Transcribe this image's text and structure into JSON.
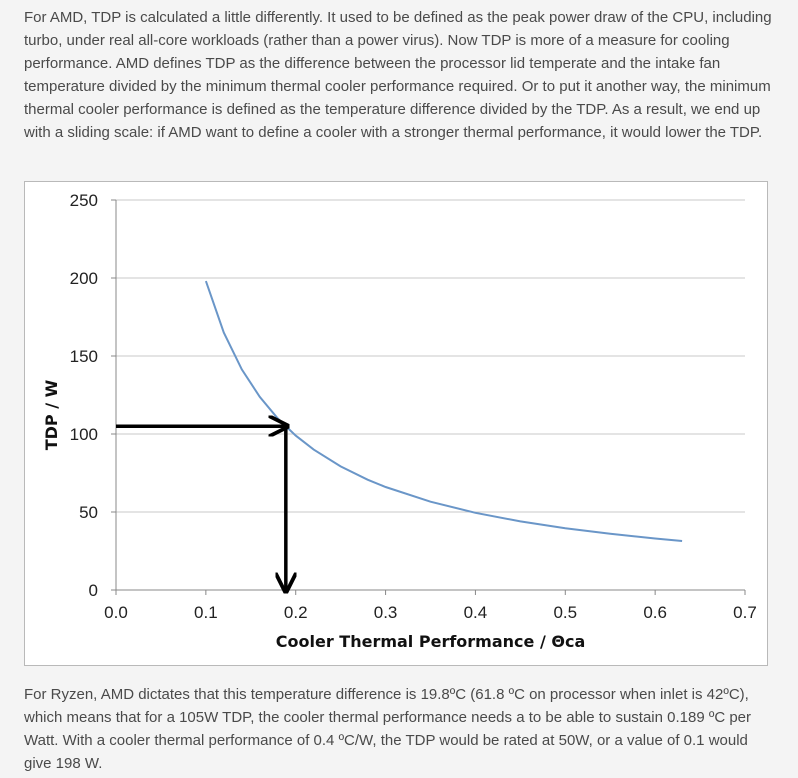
{
  "article": {
    "paragraph1": "For AMD, TDP is calculated a little differently. It used to be defined as the peak power draw of the CPU, including turbo, under real all-core workloads (rather than a power virus). Now TDP is more of a measure for cooling performance. AMD defines TDP as the difference between the processor lid temperate and the intake fan temperature divided by the minimum thermal cooler performance required. Or to put it another way, the minimum thermal cooler performance is defined as the temperature difference divided by the TDP. As a result, we end up with a sliding scale: if AMD want to define a cooler with a stronger thermal performance, it would lower the TDP.",
    "paragraph2": "For Ryzen, AMD dictates that this temperature difference is 19.8ºC (61.8 ºC on processor when inlet is 42ºC), which means that for a 105W TDP, the cooler thermal performance needs a to be able to sustain 0.189 ºC per Watt. With a cooler thermal performance of 0.4 ºC/W, the TDP would be rated at 50W, or a value of 0.1 would give 198 W."
  },
  "chart_data": {
    "type": "line",
    "title": "",
    "xlabel": "Cooler Thermal Performance / Θca",
    "ylabel": "TDP / W",
    "xlim": [
      0,
      0.7
    ],
    "ylim": [
      0,
      250
    ],
    "x_ticks": [
      "0.0",
      "0.1",
      "0.2",
      "0.3",
      "0.4",
      "0.5",
      "0.6",
      "0.7"
    ],
    "y_ticks": [
      "0",
      "50",
      "100",
      "150",
      "200",
      "250"
    ],
    "grid": true,
    "series": [
      {
        "color": "#6a96c8",
        "x": [
          0.1,
          0.12,
          0.14,
          0.16,
          0.18,
          0.2,
          0.22,
          0.25,
          0.28,
          0.3,
          0.35,
          0.4,
          0.45,
          0.5,
          0.55,
          0.6,
          0.63
        ],
        "y": [
          198,
          165,
          141.4,
          123.8,
          110,
          99,
          90,
          79.2,
          70.7,
          66,
          56.6,
          49.5,
          44,
          39.6,
          36,
          33,
          31.4
        ]
      }
    ],
    "annotations": [
      {
        "type": "arrow",
        "from": [
          0,
          105
        ],
        "to": [
          0.189,
          105
        ]
      },
      {
        "type": "arrow",
        "from": [
          0.189,
          105
        ],
        "to": [
          0.189,
          0
        ]
      }
    ]
  }
}
